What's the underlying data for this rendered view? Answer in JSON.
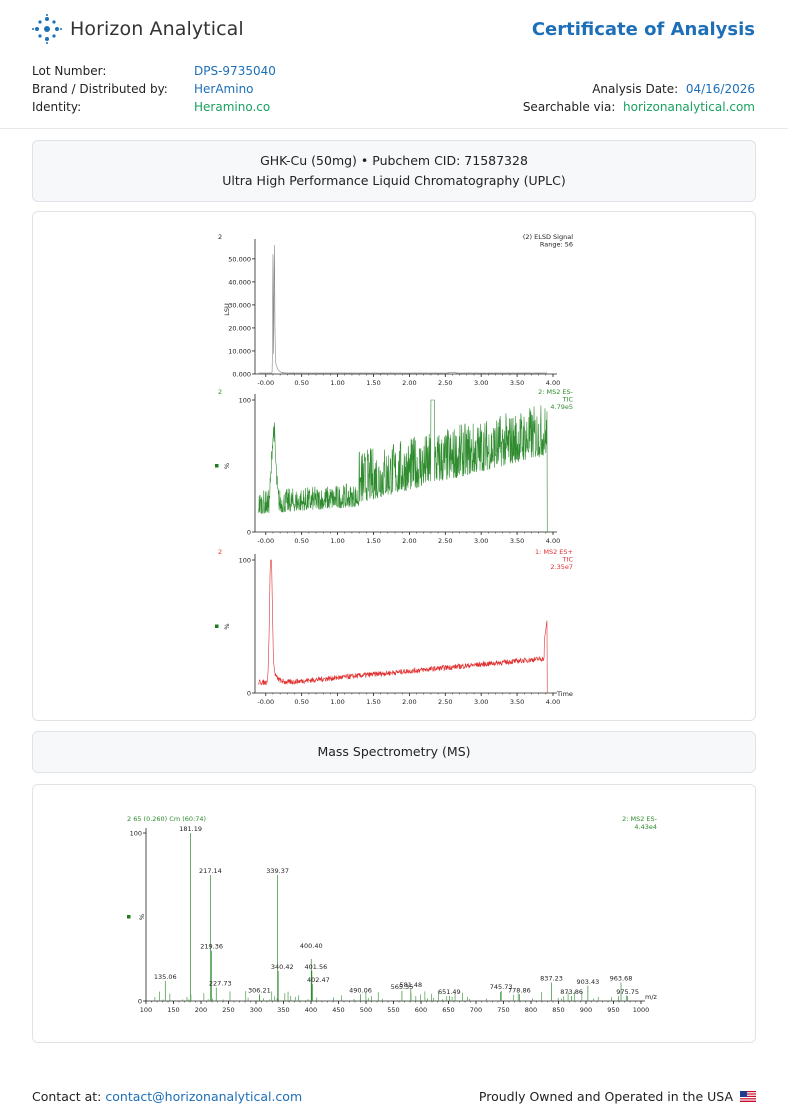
{
  "header": {
    "company": "Horizon Analytical",
    "title": "Certificate of Analysis",
    "lot_label": "Lot Number:",
    "lot_value": "DPS-9735040",
    "brand_label": "Brand / Distributed by:",
    "brand_value": "HerAmino",
    "identity_label": "Identity:",
    "identity_value": "Heramino.co",
    "date_label": "Analysis Date:",
    "date_value": "04/16/2026",
    "search_label": "Searchable via:",
    "search_value": "horizonanalytical.com"
  },
  "product": {
    "line1": "GHK-Cu (50mg) • Pubchem CID: 71587328",
    "line2": "Ultra High Performance Liquid Chromatography (UPLC)"
  },
  "ms_section": {
    "title": "Mass Spectrometry (MS)"
  },
  "footer": {
    "contact_label": "Contact at:",
    "contact_email": "contact@horizonanalytical.com",
    "made_in": "Proudly Owned and Operated in the USA"
  },
  "chart_data": [
    {
      "type": "line",
      "trace_id": "2",
      "legend": [
        "(2) ELSD Signal",
        "Range: 56"
      ],
      "ylabel": "LSU",
      "xlim": [
        -0.15,
        4.0
      ],
      "ylim": [
        0,
        56000
      ],
      "y_ticks": [
        "0.000",
        "10.000",
        "20.000",
        "30.000",
        "40.000",
        "50.000"
      ],
      "y_tick_values": [
        0,
        10000,
        20000,
        30000,
        40000,
        50000
      ],
      "x_ticks": [
        "-0.00",
        "0.50",
        "1.00",
        "1.50",
        "2.00",
        "2.50",
        "3.00",
        "3.50",
        "4.00"
      ],
      "x_tick_values": [
        0,
        0.5,
        1.0,
        1.5,
        2.0,
        2.5,
        3.0,
        3.5,
        4.0
      ],
      "peaks": [
        {
          "x": 0.12,
          "y": 56000
        },
        {
          "x": 0.1,
          "y": 52000
        }
      ],
      "color": "#888888"
    },
    {
      "type": "line",
      "trace_id": "2",
      "legend": [
        "2: MS2 ES-",
        "TIC",
        "4.79e5"
      ],
      "ylabel": "%",
      "xlim": [
        -0.15,
        4.0
      ],
      "ylim": [
        0,
        100
      ],
      "y_ticks": [
        "0",
        "100"
      ],
      "y_tick_values": [
        0,
        100
      ],
      "x_ticks": [
        "-0.00",
        "0.50",
        "1.00",
        "1.50",
        "2.00",
        "2.50",
        "3.00",
        "3.50",
        "4.00"
      ],
      "x_tick_values": [
        0,
        0.5,
        1.0,
        1.5,
        2.0,
        2.5,
        3.0,
        3.5,
        4.0
      ],
      "color": "#2e8b2e"
    },
    {
      "type": "line",
      "trace_id": "2",
      "legend": [
        "1: MS2 ES+",
        "TIC",
        "2.35e7"
      ],
      "ylabel": "%",
      "xlabel": "Time",
      "xlim": [
        -0.15,
        4.0
      ],
      "ylim": [
        0,
        100
      ],
      "y_ticks": [
        "0",
        "100"
      ],
      "y_tick_values": [
        0,
        100
      ],
      "x_ticks": [
        "-0.00",
        "0.50",
        "1.00",
        "1.50",
        "2.00",
        "2.50",
        "3.00",
        "3.50",
        "4.00"
      ],
      "x_tick_values": [
        0,
        0.5,
        1.0,
        1.5,
        2.0,
        2.5,
        3.0,
        3.5,
        4.0
      ],
      "color": "#e03030"
    },
    {
      "type": "bar",
      "header_left": "2 65 (0.260) Cm (60:74)",
      "legend": [
        "2: MS2 ES-",
        "4.43e4"
      ],
      "ylabel": "%",
      "xlabel": "m/z",
      "xlim": [
        100,
        1000
      ],
      "ylim": [
        0,
        100
      ],
      "y_ticks": [
        "0",
        "100"
      ],
      "y_tick_values": [
        0,
        100
      ],
      "x_ticks": [
        "100",
        "150",
        "200",
        "250",
        "300",
        "350",
        "400",
        "450",
        "500",
        "550",
        "600",
        "650",
        "700",
        "750",
        "800",
        "850",
        "900",
        "950",
        "1000"
      ],
      "x_tick_values": [
        100,
        150,
        200,
        250,
        300,
        350,
        400,
        450,
        500,
        550,
        600,
        650,
        700,
        750,
        800,
        850,
        900,
        950,
        1000
      ],
      "labeled_peaks": [
        {
          "label": "135.06",
          "x": 135.06,
          "y": 12
        },
        {
          "label": "181.19",
          "x": 181.19,
          "y": 100
        },
        {
          "label": "217.14",
          "x": 217.14,
          "y": 75
        },
        {
          "label": "219.36",
          "x": 219.36,
          "y": 30
        },
        {
          "label": "227.73",
          "x": 227.73,
          "y": 8
        },
        {
          "label": "306.21",
          "x": 306.21,
          "y": 4
        },
        {
          "label": "339.37",
          "x": 339.37,
          "y": 75
        },
        {
          "label": "340.42",
          "x": 340.42,
          "y": 18
        },
        {
          "label": "400.40",
          "x": 400.4,
          "y": 25
        },
        {
          "label": "401.56",
          "x": 401.56,
          "y": 18
        },
        {
          "label": "402.47",
          "x": 402.47,
          "y": 10
        },
        {
          "label": "490.06",
          "x": 490.06,
          "y": 4
        },
        {
          "label": "565.35",
          "x": 565.35,
          "y": 6
        },
        {
          "label": "581.48",
          "x": 581.48,
          "y": 7
        },
        {
          "label": "651.49",
          "x": 651.49,
          "y": 3
        },
        {
          "label": "745.73",
          "x": 745.73,
          "y": 6
        },
        {
          "label": "778.86",
          "x": 778.86,
          "y": 4
        },
        {
          "label": "837.23",
          "x": 837.23,
          "y": 11
        },
        {
          "label": "873.86",
          "x": 873.86,
          "y": 3
        },
        {
          "label": "903.43",
          "x": 903.43,
          "y": 9
        },
        {
          "label": "963.68",
          "x": 963.68,
          "y": 11
        },
        {
          "label": "975.75",
          "x": 975.75,
          "y": 3
        }
      ],
      "color": "#2e8b2e"
    }
  ]
}
